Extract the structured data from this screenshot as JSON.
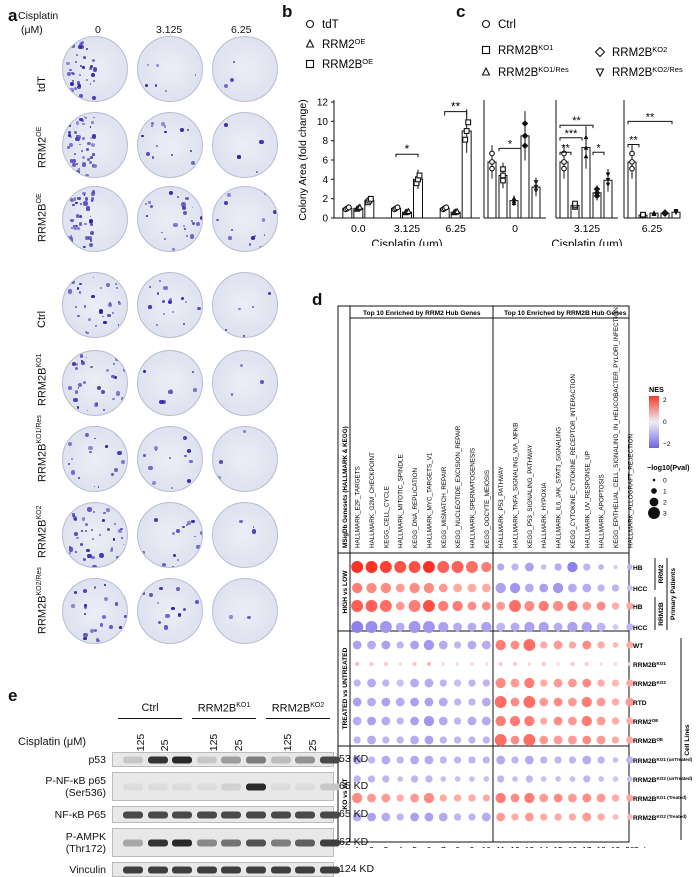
{
  "panel_letters": {
    "a": "a",
    "b": "b",
    "c": "c",
    "d": "d",
    "e": "e"
  },
  "panel_a": {
    "cisplatin_label_1": "Cisplatin",
    "cisplatin_label_2": "(μM)",
    "doses": [
      "0",
      "3.125",
      "6.25"
    ],
    "rows_top": [
      "tdT",
      "RRM2",
      "RRM2B"
    ],
    "rows_top_sup": [
      "",
      "OE",
      "OE"
    ],
    "rows_bottom": [
      "Ctrl",
      "RRM2B",
      "RRM2B",
      "RRM2B",
      "RRM2B"
    ],
    "rows_bottom_sup": [
      "",
      "KO1",
      "KO1/Res",
      "KO2",
      "KO2/Res"
    ]
  },
  "panel_b": {
    "legend": [
      {
        "name": "tdT",
        "sup": "",
        "marker": "circle"
      },
      {
        "name": "RRM2",
        "sup": "OE",
        "marker": "triangle"
      },
      {
        "name": "RRM2B",
        "sup": "OE",
        "marker": "square"
      }
    ],
    "chart_data": {
      "type": "bar",
      "categories": [
        "0.0",
        "3.125",
        "6.25"
      ],
      "series": [
        {
          "name": "tdT",
          "values": [
            1.0,
            1.0,
            1.0
          ]
        },
        {
          "name": "RRM2OE",
          "values": [
            1.0,
            0.6,
            0.6
          ]
        },
        {
          "name": "RRM2BOE",
          "values": [
            1.8,
            4.0,
            9.0
          ]
        }
      ],
      "ylim": [
        0,
        12
      ],
      "yticks": [
        "0",
        "2",
        "4",
        "6",
        "8",
        "10",
        "12"
      ],
      "ylabel": "Colony Area (fold change)",
      "xlabel": "Cisplatin (μm)",
      "significance": [
        "*",
        "**"
      ]
    }
  },
  "panel_c": {
    "legend": [
      {
        "name": "Ctrl",
        "sup": "",
        "marker": "circle"
      },
      {
        "name": "RRM2B",
        "sup": "KO1",
        "marker": "square"
      },
      {
        "name": "RRM2B",
        "sup": "KO2",
        "marker": "diamond"
      },
      {
        "name": "RRM2B",
        "sup": "KO1/Res",
        "marker": "triangle"
      },
      {
        "name": "RRM2B",
        "sup": "KO2/Res",
        "marker": "inverted-triangle"
      }
    ],
    "chart_data": {
      "type": "bar",
      "categories": [
        "0",
        "3.125",
        "6.25"
      ],
      "series": [
        {
          "name": "Ctrl",
          "values": [
            5.8,
            5.8,
            5.8
          ]
        },
        {
          "name": "RRM2BKO1",
          "values": [
            4.4,
            1.3,
            0.3
          ]
        },
        {
          "name": "RRM2BKO1/Res",
          "values": [
            1.8,
            7.3,
            0.5
          ]
        },
        {
          "name": "RRM2BKO2",
          "values": [
            8.5,
            2.6,
            0.5
          ]
        },
        {
          "name": "RRM2BKO2/Res",
          "values": [
            3.2,
            3.9,
            0.6
          ]
        }
      ],
      "ylim": [
        0,
        12
      ],
      "xlabel": "Cisplatin (μm)",
      "significance": [
        "*",
        "**",
        "***",
        "**",
        "*",
        "**",
        "**"
      ]
    }
  },
  "panel_d": {
    "header_left": "Top 10 Enriched by RRM2 Hub Genes",
    "header_right": "Top 10 Enriched by RRM2B Hub Genes",
    "genesets_label": "MSigDb Genesets (HALLMARK & KEGG)",
    "genesets": [
      "HALLMARK_E2F_TARGETS",
      "HALLMARK_G2M_CHECKPOINT",
      "KEGG_CELL_CYCLE",
      "HALLMARK_MITOTIC_SPINDLE",
      "KEGG_DNA_REPLICATION",
      "HALLMARK_MYC_TARGETS_V1",
      "KEGG_MISMATCH_REPAIR",
      "KEGG_NUCLEOTIDE_EXCISION_REPAIR",
      "HALLMARK_SPERMATOGENESIS",
      "KEGG_OOCYTE_MEIOSIS",
      "HALLMARK_P53_PATHWAY",
      "HALLMARK_TNFA_SIGNALING_VIA_NFKB",
      "KEGG_P53_SIGNALING_PATHWAY",
      "HALLMARK_HYPOXIA",
      "HALLMARK_IL6_JAK_STAT3_SIGNALING",
      "KEGG_CYTOKINE_CYTOKINE_RECEPTOR_INTERACTION",
      "HALLMARK_UV_RESPONSE_UP",
      "HALLMARK_APOPTOSIS",
      "KEGG_EPITHELIAL_CELL_SIGNALING_IN_HELICOBACTER_PYLORI_INFECTION",
      "HALLMARK_ALLOGRAFT_REJECTION"
    ],
    "groups": [
      "HIGH vs LOW",
      "TREATED vs UNTREATED",
      "KO vs WT"
    ],
    "rows": [
      {
        "label": "HB",
        "sup": ""
      },
      {
        "label": "HCC",
        "sup": ""
      },
      {
        "label": "HB",
        "sup": ""
      },
      {
        "label": "HCC",
        "sup": ""
      },
      {
        "label": "WT",
        "sup": ""
      },
      {
        "label": "RRM2B",
        "sup": "KO1"
      },
      {
        "label": "RRM2B",
        "sup": "KO2"
      },
      {
        "label": "RTD",
        "sup": ""
      },
      {
        "label": "RRM2",
        "sup": "OE"
      },
      {
        "label": "RRM2B",
        "sup": "OE"
      },
      {
        "label": "RRM2B",
        "sup": "KO1 (unTreated)"
      },
      {
        "label": "RRM2B",
        "sup": "KO2 (unTreated)"
      },
      {
        "label": "RRM2B",
        "sup": "KO1 (Treated)"
      },
      {
        "label": "RRM2B",
        "sup": "KO2 (Treated)"
      }
    ],
    "side_gene_labels": [
      "RRM2",
      "RRM2B"
    ],
    "side_group_labels": [
      "Primary Patients",
      "Cell Lines"
    ],
    "column_numbers": [
      "1",
      "2",
      "3",
      "4",
      "5",
      "6",
      "7",
      "8",
      "9",
      "10",
      "11",
      "12",
      "13",
      "14",
      "15",
      "16",
      "17",
      "18",
      "19",
      "20"
    ],
    "column_label": "Column",
    "legend": {
      "nes_title": "NES",
      "nes_ticks": [
        "2",
        "1",
        "0",
        "−1",
        "−2"
      ],
      "pval_title": "−log10(Pval)",
      "pval_ticks": [
        "0",
        "1",
        "2",
        "3"
      ]
    },
    "chart_data": {
      "type": "heatmap",
      "nes": [
        [
          2.8,
          2.6,
          2.4,
          2.2,
          2.2,
          2.6,
          2.0,
          2.0,
          1.8,
          1.6,
          -1.2,
          -1.0,
          -1.4,
          -0.8,
          -1.2,
          -2.0,
          -1.0,
          -1.0,
          -0.6,
          -1.0
        ],
        [
          1.6,
          1.4,
          1.4,
          1.2,
          1.4,
          1.4,
          1.2,
          1.0,
          1.0,
          1.0,
          -1.4,
          -1.6,
          -1.2,
          -1.4,
          -1.6,
          -1.2,
          -1.2,
          -1.0,
          -1.0,
          -0.8
        ],
        [
          2.0,
          2.0,
          1.8,
          1.2,
          1.6,
          2.2,
          1.6,
          1.6,
          1.4,
          1.4,
          1.2,
          1.8,
          1.4,
          1.6,
          1.4,
          1.6,
          1.2,
          1.4,
          1.0,
          1.0
        ],
        [
          -2.0,
          -1.8,
          -1.6,
          -1.2,
          -1.6,
          -1.6,
          -1.4,
          -1.2,
          -1.2,
          -1.4,
          -1.0,
          -1.2,
          -1.4,
          -1.4,
          -1.2,
          -1.4,
          -1.4,
          -1.0,
          -0.6,
          -1.0
        ],
        [
          -1.4,
          -1.2,
          -1.4,
          -1.0,
          -1.4,
          -1.6,
          -1.2,
          -1.0,
          -1.2,
          -1.2,
          1.6,
          1.4,
          1.8,
          1.0,
          1.2,
          1.0,
          1.4,
          1.0,
          0.8,
          1.0
        ],
        [
          0.8,
          0.6,
          0.6,
          0.4,
          0.6,
          0.8,
          0.4,
          0.4,
          0.4,
          0.4,
          0.6,
          0.6,
          0.4,
          0.6,
          0.4,
          0.6,
          0.6,
          0.4,
          0.4,
          0.4
        ],
        [
          -1.0,
          -1.2,
          -1.0,
          -0.8,
          -1.2,
          -1.2,
          -1.0,
          -0.8,
          -1.0,
          -1.0,
          1.4,
          1.2,
          1.6,
          1.0,
          1.2,
          1.2,
          1.4,
          1.0,
          0.8,
          1.0
        ],
        [
          -1.4,
          -1.2,
          -1.4,
          -1.2,
          -1.4,
          -1.4,
          -1.2,
          -1.0,
          -1.0,
          -1.2,
          1.8,
          1.4,
          1.8,
          1.2,
          1.4,
          1.2,
          1.6,
          1.2,
          1.0,
          1.2
        ],
        [
          -1.2,
          -1.4,
          -1.2,
          -1.0,
          -1.4,
          -1.6,
          -1.2,
          -1.0,
          -1.2,
          -1.2,
          1.6,
          1.6,
          1.6,
          1.0,
          1.4,
          1.2,
          1.6,
          1.2,
          1.0,
          1.0
        ],
        [
          -1.0,
          -1.2,
          -1.0,
          -1.0,
          -1.2,
          -1.4,
          -1.0,
          -1.0,
          -1.0,
          -1.0,
          1.8,
          1.4,
          1.8,
          1.2,
          1.2,
          1.2,
          1.4,
          1.2,
          1.0,
          1.0
        ],
        [
          -1.2,
          -1.0,
          -1.2,
          -1.0,
          -1.2,
          -1.2,
          -1.0,
          -1.0,
          -1.0,
          -1.0,
          -1.2,
          -1.0,
          -1.2,
          -1.0,
          -1.0,
          -1.0,
          -1.2,
          -1.0,
          -0.8,
          -1.0
        ],
        [
          -1.0,
          -1.0,
          -1.0,
          -0.8,
          -1.0,
          -1.0,
          -0.8,
          -0.8,
          -0.8,
          -0.8,
          -1.0,
          -0.8,
          -1.0,
          -0.8,
          -0.8,
          -0.8,
          -1.0,
          -0.8,
          -0.6,
          -0.8
        ],
        [
          1.4,
          1.2,
          1.2,
          1.0,
          1.2,
          1.4,
          1.0,
          1.0,
          1.0,
          1.0,
          1.6,
          1.4,
          1.6,
          1.2,
          1.4,
          1.2,
          1.4,
          1.2,
          1.0,
          1.0
        ],
        [
          -1.2,
          -1.4,
          -1.2,
          -1.0,
          -1.4,
          -1.4,
          -1.2,
          -1.0,
          -1.0,
          -1.2,
          1.2,
          1.0,
          1.2,
          1.0,
          1.0,
          1.0,
          1.2,
          1.0,
          0.8,
          0.8
        ]
      ],
      "pval": [
        [
          3,
          3,
          3,
          3,
          3,
          3,
          3,
          3,
          3,
          2.5,
          1.5,
          1.5,
          2,
          1,
          1.5,
          2.5,
          1.5,
          1,
          0.5,
          1
        ],
        [
          2.5,
          2.5,
          2.5,
          2,
          2.5,
          2.5,
          2,
          2,
          2,
          2,
          2.5,
          2.5,
          2,
          2,
          2.5,
          2,
          2,
          1.5,
          1.5,
          1
        ],
        [
          3,
          3,
          3,
          2,
          3,
          3,
          2.5,
          2.5,
          2,
          2,
          2,
          3,
          2.5,
          2.5,
          2.5,
          2.5,
          2,
          2,
          1.5,
          1.5
        ],
        [
          3,
          3,
          3,
          2,
          3,
          3,
          2.5,
          2,
          2,
          2.5,
          2,
          2,
          2.5,
          2.5,
          2,
          2.5,
          2.5,
          2,
          1,
          1.5
        ],
        [
          2,
          2,
          2,
          1.5,
          2,
          2.5,
          2,
          1.5,
          2,
          2,
          2.5,
          2,
          3,
          1.5,
          2,
          1.5,
          2,
          1.5,
          1,
          1.5
        ],
        [
          0.5,
          0.5,
          0.5,
          0.3,
          0.5,
          0.5,
          0.3,
          0.3,
          0.3,
          0.3,
          0.5,
          0.5,
          0.3,
          0.5,
          0.3,
          0.5,
          0.5,
          0.3,
          0.3,
          0.3
        ],
        [
          1.5,
          2,
          1.5,
          1.5,
          2,
          2,
          1.5,
          1.5,
          1.5,
          1.5,
          2.5,
          2,
          2.5,
          1.5,
          2,
          2,
          2,
          1.5,
          1.5,
          1.5
        ],
        [
          2,
          2,
          2,
          2,
          2,
          2,
          2,
          1.5,
          1.5,
          2,
          3,
          2,
          3,
          2,
          2,
          2,
          2.5,
          2,
          1.5,
          2
        ],
        [
          2,
          2,
          2,
          1.5,
          2,
          2.5,
          2,
          1.5,
          2,
          2,
          2.5,
          2.5,
          2.5,
          1.5,
          2,
          2,
          2.5,
          2,
          1.5,
          1.5
        ],
        [
          1.5,
          2,
          1.5,
          1.5,
          2,
          2,
          1.5,
          1.5,
          1.5,
          1.5,
          3,
          2,
          3,
          2,
          2,
          2,
          2,
          2,
          1.5,
          1.5
        ],
        [
          2,
          1.5,
          2,
          1.5,
          2,
          2,
          1.5,
          1.5,
          1.5,
          1.5,
          2,
          1.5,
          2,
          1.5,
          1.5,
          1.5,
          2,
          1.5,
          1,
          1.5
        ],
        [
          1.5,
          1.5,
          1.5,
          1,
          1.5,
          1.5,
          1,
          1,
          1,
          1,
          1.5,
          1,
          1.5,
          1,
          1,
          1,
          1.5,
          1,
          1,
          1
        ],
        [
          2.5,
          2,
          2,
          1.5,
          2,
          2.5,
          1.5,
          1.5,
          1.5,
          1.5,
          2.5,
          2,
          2.5,
          2,
          2,
          2,
          2,
          2,
          1.5,
          1.5
        ],
        [
          2,
          2,
          2,
          1.5,
          2,
          2,
          2,
          1.5,
          1.5,
          2,
          2,
          1.5,
          2,
          1.5,
          1.5,
          1.5,
          2,
          1.5,
          1,
          1
        ]
      ]
    }
  },
  "panel_e": {
    "group_labels": [
      {
        "name": "Ctrl",
        "sup": ""
      },
      {
        "name": "RRM2B",
        "sup": "KO1"
      },
      {
        "name": "RRM2B",
        "sup": "KO2"
      }
    ],
    "cisplatin_label": "Cisplatin (μM)",
    "lane_doses": [
      "0",
      "3.125",
      "6.25",
      "0",
      "3.125",
      "6.25",
      "0",
      "3.125",
      "6.25"
    ],
    "blots": [
      {
        "label": "p53",
        "label2": "",
        "kd": "53 KD",
        "intensity": [
          0.15,
          0.85,
          0.9,
          0.15,
          0.35,
          0.5,
          0.2,
          0.4,
          0.75
        ]
      },
      {
        "label": "P-NF-κB p65",
        "label2": "(Ser536)",
        "kd": "65 KD",
        "intensity": [
          0.05,
          0.05,
          0.05,
          0.05,
          0.1,
          0.9,
          0.05,
          0.05,
          0.15
        ]
      },
      {
        "label": "NF-κB P65",
        "label2": "",
        "kd": "65 KD",
        "intensity": [
          0.75,
          0.75,
          0.75,
          0.75,
          0.75,
          0.75,
          0.75,
          0.75,
          0.75
        ]
      },
      {
        "label": "P-AMPK",
        "label2": "(Thr172)",
        "kd": "62 KD",
        "intensity": [
          0.3,
          0.85,
          0.9,
          0.45,
          0.55,
          0.7,
          0.5,
          0.65,
          0.8
        ]
      },
      {
        "label": "Vinculin",
        "label2": "",
        "kd": "124 KD",
        "intensity": [
          0.8,
          0.8,
          0.8,
          0.8,
          0.8,
          0.8,
          0.8,
          0.8,
          0.8
        ]
      }
    ]
  }
}
